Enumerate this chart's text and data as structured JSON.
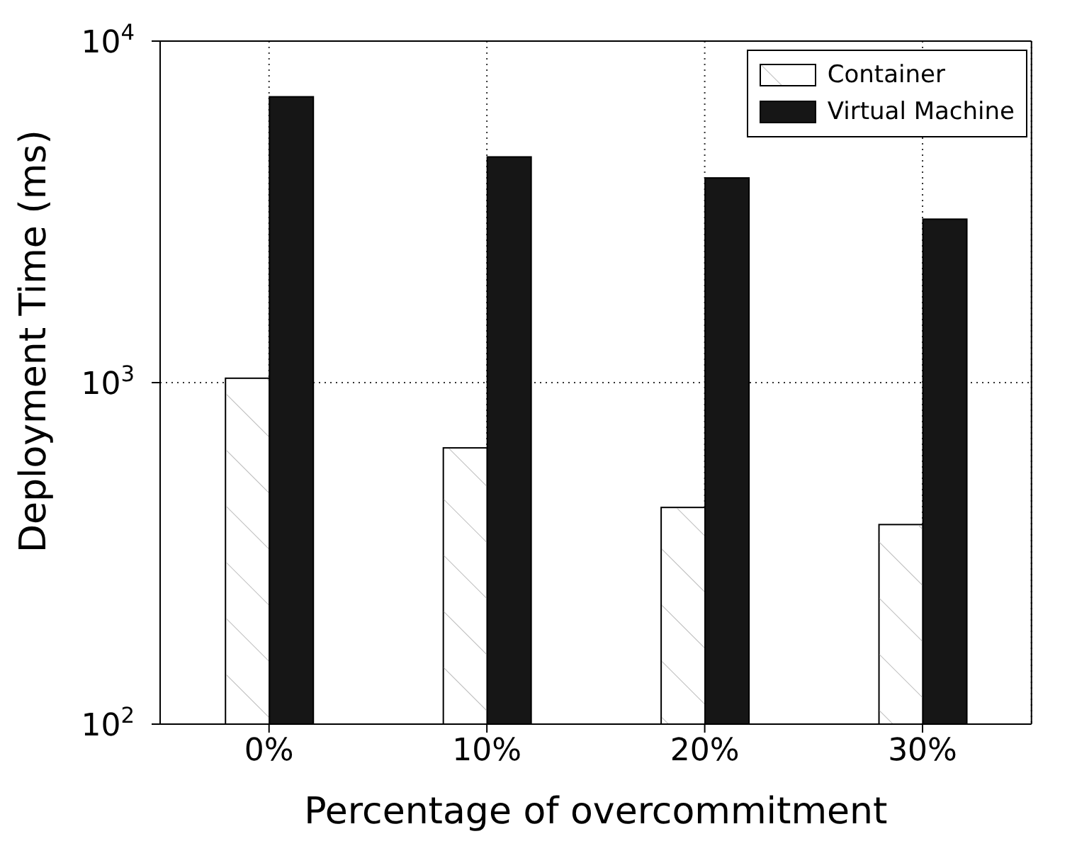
{
  "chart_data": {
    "type": "bar",
    "xlabel": "Percentage of overcommitment",
    "ylabel": "Deployment Time (ms)",
    "categories": [
      "0%",
      "10%",
      "20%",
      "30%"
    ],
    "series": [
      {
        "name": "Container",
        "color": "#ffffff",
        "values": [
          1030,
          644,
          431,
          384
        ]
      },
      {
        "name": "Virtual Machine",
        "color": "#161616",
        "values": [
          6870,
          4580,
          3975,
          3010
        ]
      }
    ],
    "log": "y",
    "ylim": [
      100,
      10000
    ],
    "yticks": [
      {
        "value": 100,
        "label": "10$^{2}$"
      },
      {
        "value": 1000,
        "label": "10$^{3}$"
      },
      {
        "value": 10000,
        "label": "10$^{4}$"
      }
    ],
    "grid": true,
    "legend": "top right"
  }
}
